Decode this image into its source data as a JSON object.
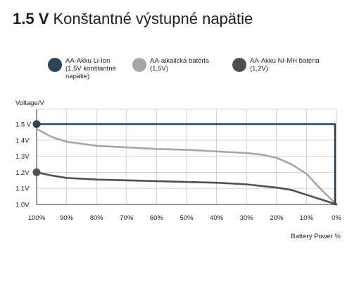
{
  "title": {
    "bold": "1.5 V",
    "rest": "Konštantné výstupné napätie"
  },
  "legend": [
    {
      "lines": [
        "AA-Akku Li-Ion",
        "(1,5V konštantné",
        "napätie)"
      ],
      "color": "#2b4456"
    },
    {
      "lines": [
        "AA-alkalická batéria",
        "(1,5V)"
      ],
      "color": "#a6a6a6"
    },
    {
      "lines": [
        "AA-Akku NI-MH batéria",
        "(1,2V)"
      ],
      "color": "#4f4f4f"
    }
  ],
  "chart_data": {
    "type": "line",
    "ylabel": "Voltage/V",
    "xlabel": "Battery Power %",
    "x_ticks": [
      "100%",
      "90%",
      "80%",
      "70%",
      "60%",
      "50%",
      "40%",
      "30%",
      "20%",
      "10%",
      "0%"
    ],
    "y_ticks": [
      "1.5 V",
      "1.4V",
      "1.3V",
      "1.2V",
      "1.1V",
      "1.0V"
    ],
    "xlim": [
      100,
      0
    ],
    "ylim": [
      1.0,
      1.5
    ],
    "grid": true,
    "series": [
      {
        "name": "AA-Akku Li-Ion (1,5V konštantné napätie)",
        "color": "#2b4456",
        "x": [
          100,
          0.5,
          0.5
        ],
        "y": [
          1.5,
          1.5,
          1.0
        ],
        "marker_at_start": true
      },
      {
        "name": "AA-alkalická batéria (1,5V)",
        "color": "#a6a6a6",
        "x": [
          100,
          95,
          90,
          80,
          70,
          60,
          50,
          40,
          30,
          25,
          20,
          15,
          10,
          5,
          0
        ],
        "y": [
          1.47,
          1.42,
          1.39,
          1.365,
          1.355,
          1.345,
          1.34,
          1.33,
          1.32,
          1.31,
          1.29,
          1.25,
          1.19,
          1.09,
          1.0
        ],
        "marker_at_start": false
      },
      {
        "name": "AA-Akku NI-MH batéria (1,2V)",
        "color": "#4f4f4f",
        "x": [
          100,
          95,
          90,
          80,
          70,
          60,
          50,
          40,
          30,
          20,
          15,
          10,
          5,
          0
        ],
        "y": [
          1.2,
          1.18,
          1.165,
          1.155,
          1.15,
          1.145,
          1.14,
          1.135,
          1.125,
          1.105,
          1.09,
          1.06,
          1.03,
          1.0
        ],
        "marker_at_start": true
      }
    ]
  }
}
